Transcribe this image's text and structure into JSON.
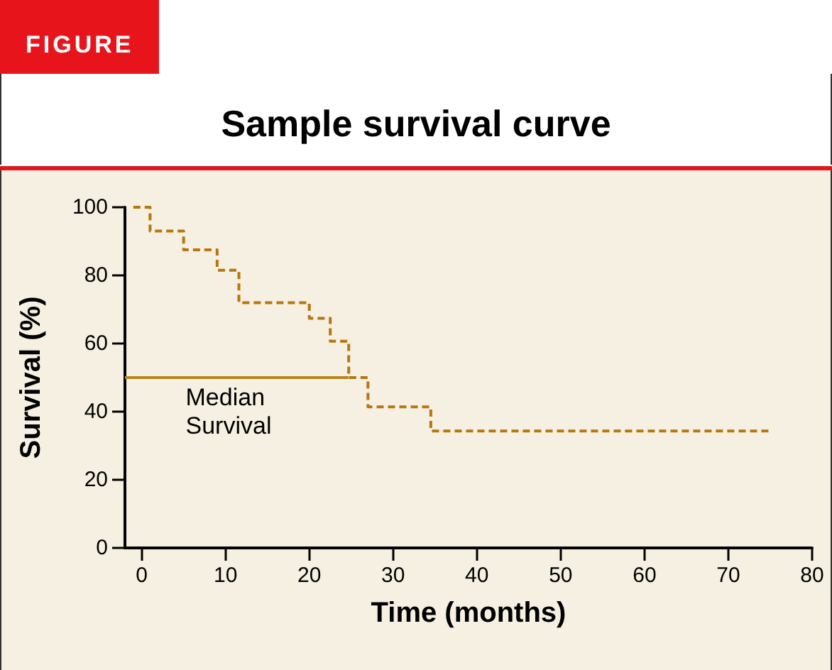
{
  "chart_data": {
    "type": "step",
    "title": "Sample survival curve",
    "xlabel": "Time (months)",
    "ylabel": "Survival (%)",
    "annotations": [
      "FIGURE",
      "Median Survival"
    ],
    "series": [
      {
        "color": "#b5770f",
        "line_style": "dashed",
        "x": [
          -1,
          1,
          5,
          9,
          11.6,
          20,
          22.5,
          24.7,
          27,
          34.5,
          75
        ],
        "values": [
          100,
          93,
          87.5,
          81.5,
          72,
          67.4,
          60.7,
          50,
          41.4,
          34.3,
          34.3
        ]
      },
      {
        "type": "line",
        "color": "#b8861b",
        "line_style": "solid",
        "x": [
          -2,
          24.7
        ],
        "values": [
          50,
          50
        ]
      }
    ],
    "xlim": [
      -2,
      80
    ],
    "xticks": [
      0,
      10,
      20,
      30,
      40,
      50,
      60,
      70,
      80
    ],
    "ylim": [
      0,
      100
    ],
    "yticks": [
      0,
      20,
      40,
      60,
      80,
      100
    ],
    "grid": false,
    "marker": "none"
  }
}
